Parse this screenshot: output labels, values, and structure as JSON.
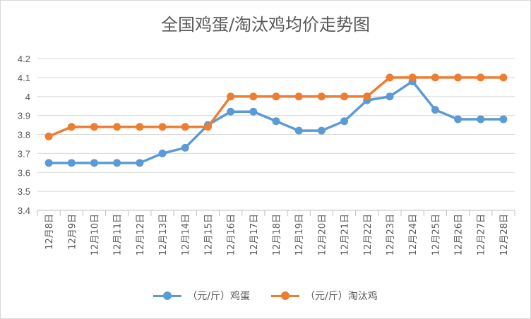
{
  "chart_data": {
    "type": "line",
    "title": "全国鸡蛋/淘汰鸡均价走势图",
    "xlabel": "",
    "ylabel": "",
    "ylim": [
      3.4,
      4.2
    ],
    "yticks": [
      "3.4",
      "3.5",
      "3.6",
      "3.7",
      "3.8",
      "3.9",
      "4",
      "4.1",
      "4.2"
    ],
    "grid": true,
    "legend_position": "bottom",
    "categories": [
      "12月8日",
      "12月9日",
      "12月10日",
      "12月11日",
      "12月12日",
      "12月13日",
      "12月14日",
      "12月15日",
      "12月16日",
      "12月17日",
      "12月18日",
      "12月19日",
      "12月20日",
      "12月21日",
      "12月22日",
      "12月23日",
      "12月24日",
      "12月25日",
      "12月26日",
      "12月27日",
      "12月28日"
    ],
    "series": [
      {
        "name": "（元/斤）鸡蛋",
        "color": "#5b9bd5",
        "values": [
          3.65,
          3.65,
          3.65,
          3.65,
          3.65,
          3.7,
          3.73,
          3.85,
          3.92,
          3.92,
          3.87,
          3.82,
          3.82,
          3.87,
          3.98,
          4.0,
          4.08,
          3.93,
          3.88,
          3.88,
          3.88
        ]
      },
      {
        "name": "（元/斤）淘汰鸡",
        "color": "#ed7d31",
        "values": [
          3.79,
          3.84,
          3.84,
          3.84,
          3.84,
          3.84,
          3.84,
          3.84,
          4.0,
          4.0,
          4.0,
          4.0,
          4.0,
          4.0,
          4.0,
          4.1,
          4.1,
          4.1,
          4.1,
          4.1,
          4.1
        ]
      }
    ]
  }
}
